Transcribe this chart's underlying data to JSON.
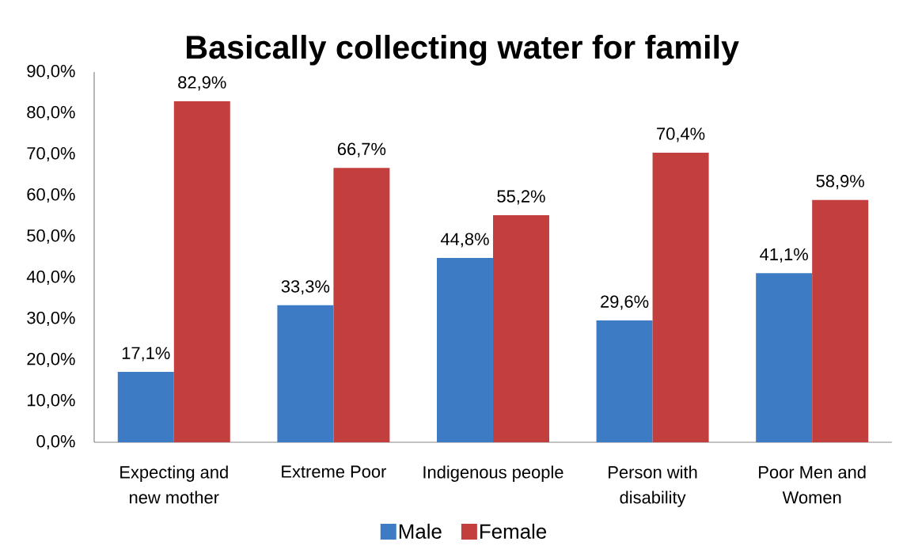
{
  "chart_data": {
    "type": "bar",
    "title": "Basically collecting water for family",
    "categories": [
      "Expecting and new mother",
      "Extreme Poor",
      "Indigenous people",
      "Person with disability",
      "Poor Men and Women"
    ],
    "series": [
      {
        "name": "Male",
        "color": "#3e7bc5",
        "values": [
          17.1,
          33.3,
          44.8,
          29.6,
          41.1
        ],
        "value_labels": [
          "17,1%",
          "33,3%",
          "44,8%",
          "29,6%",
          "41,1%"
        ]
      },
      {
        "name": "Female",
        "color": "#c33f3d",
        "values": [
          82.9,
          66.7,
          55.2,
          70.4,
          58.9
        ],
        "value_labels": [
          "82,9%",
          "66,7%",
          "55,2%",
          "70,4%",
          "58,9%"
        ]
      }
    ],
    "ylim": [
      0,
      90
    ],
    "yticks": [
      {
        "value": 0,
        "label": "0,0%"
      },
      {
        "value": 10,
        "label": "10,0%"
      },
      {
        "value": 20,
        "label": "20,0%"
      },
      {
        "value": 30,
        "label": "30,0%"
      },
      {
        "value": 40,
        "label": "40,0%"
      },
      {
        "value": 50,
        "label": "50,0%"
      },
      {
        "value": 60,
        "label": "60,0%"
      },
      {
        "value": 70,
        "label": "70,0%"
      },
      {
        "value": 80,
        "label": "80,0%"
      },
      {
        "value": 90,
        "label": "90,0%"
      }
    ],
    "legend": "bottom"
  }
}
